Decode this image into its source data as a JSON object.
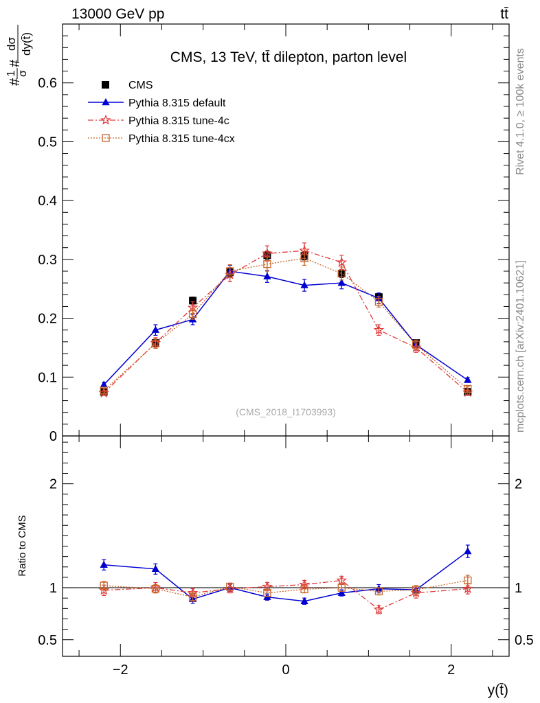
{
  "header": {
    "beam": "13000 GeV pp",
    "process": "tt̄"
  },
  "side_labels": {
    "rivet": "Rivet 4.1.0, ≥ 100k events",
    "mcplots": "mcplots.cern.ch [arXiv:2401.10621]"
  },
  "colors": {
    "cms": "#000000",
    "default": "#0000d0",
    "tune4c": "#e03a3a",
    "tune4cx": "#c86428"
  },
  "chart_data": [
    {
      "type": "line",
      "title": "CMS, 13 TeV, tt̄ dilepton, parton level",
      "watermark": "(CMS_2018_I1703993)",
      "xlabel": "y(t̄)",
      "ylabel": "#1/σ# dσ/dy(t̄)",
      "ylabel_parts": {
        "prefix": "#",
        "num": "1",
        "den": "σ",
        "mid": "#",
        "dnum": "dσ",
        "dden": "dy(t̄)"
      },
      "xlim": [
        -2.7,
        2.7
      ],
      "ylim": [
        0,
        0.7
      ],
      "xticks": [
        -2,
        0,
        2
      ],
      "xtick_labels": [
        "−2",
        "0",
        "2"
      ],
      "yticks": [
        0,
        0.1,
        0.2,
        0.3,
        0.4,
        0.5,
        0.6
      ],
      "ytick_labels": [
        "0",
        "0.1",
        "0.2",
        "0.3",
        "0.4",
        "0.5",
        "0.6"
      ],
      "x": [
        -2.2,
        -1.575,
        -1.125,
        -0.675,
        -0.225,
        0.225,
        0.675,
        1.125,
        1.575,
        2.2
      ],
      "series": [
        {
          "name": "CMS",
          "key": "cms",
          "marker": "square-filled",
          "line": "none",
          "values": [
            0.075,
            0.158,
            0.23,
            0.278,
            0.307,
            0.306,
            0.276,
            0.236,
            0.158,
            0.075
          ],
          "errors": [
            0.003,
            0.005,
            0.006,
            0.007,
            0.007,
            0.007,
            0.007,
            0.006,
            0.005,
            0.003
          ]
        },
        {
          "name": "Pythia 8.315 default",
          "key": "default",
          "marker": "triangle-filled",
          "line": "solid",
          "values": [
            0.087,
            0.18,
            0.198,
            0.28,
            0.271,
            0.256,
            0.26,
            0.234,
            0.155,
            0.095
          ],
          "errors": [
            0.004,
            0.009,
            0.009,
            0.01,
            0.01,
            0.01,
            0.01,
            0.009,
            0.008,
            0.004
          ]
        },
        {
          "name": "Pythia 8.315 tune-4c",
          "key": "tune4c",
          "marker": "star-open",
          "line": "dashdot",
          "values": [
            0.073,
            0.158,
            0.218,
            0.274,
            0.31,
            0.315,
            0.295,
            0.18,
            0.15,
            0.074
          ],
          "errors": [
            0.004,
            0.009,
            0.01,
            0.012,
            0.013,
            0.013,
            0.012,
            0.009,
            0.008,
            0.004
          ]
        },
        {
          "name": "Pythia 8.315 tune-4cx",
          "key": "tune4cx",
          "marker": "square-open",
          "line": "dotted",
          "values": [
            0.077,
            0.157,
            0.207,
            0.28,
            0.292,
            0.302,
            0.276,
            0.228,
            0.155,
            0.08
          ],
          "errors": [
            0.004,
            0.008,
            0.009,
            0.011,
            0.012,
            0.012,
            0.011,
            0.009,
            0.008,
            0.004
          ]
        }
      ]
    },
    {
      "type": "line",
      "ylabel": "Ratio to CMS",
      "xlabel": "y(t̄)",
      "xlim": [
        -2.7,
        2.7
      ],
      "ylim": [
        0.34,
        2.46
      ],
      "ytick_labels_left": [
        "0.5",
        "1",
        "2"
      ],
      "ytick_labels_right": [
        "0.5",
        "1",
        "2"
      ],
      "yticks_major": [
        0.5,
        1,
        2
      ],
      "yticks_minor": [
        0.6,
        0.7,
        0.8,
        0.9,
        1.1,
        1.2,
        1.3,
        1.4,
        1.5,
        1.6,
        1.7,
        1.8,
        1.9,
        2.1,
        2.2,
        2.3,
        2.4
      ],
      "reference_line": 1,
      "x": [
        -2.2,
        -1.575,
        -1.125,
        -0.675,
        -0.225,
        0.225,
        0.675,
        1.125,
        1.575,
        2.2
      ],
      "series": [
        {
          "name": "Pythia 8.315 default",
          "key": "default",
          "marker": "triangle-filled",
          "line": "solid",
          "values": [
            1.22,
            1.18,
            0.89,
            1.0,
            0.91,
            0.87,
            0.95,
            0.99,
            0.98,
            1.35
          ],
          "errors": [
            0.05,
            0.05,
            0.04,
            0.035,
            0.03,
            0.03,
            0.03,
            0.04,
            0.04,
            0.06
          ]
        },
        {
          "name": "Pythia 8.315 tune-4c",
          "key": "tune4c",
          "marker": "star-open",
          "line": "dashdot",
          "values": [
            0.975,
            1.0,
            0.95,
            0.99,
            1.01,
            1.03,
            1.07,
            0.79,
            0.95,
            0.99
          ],
          "errors": [
            0.05,
            0.05,
            0.04,
            0.04,
            0.04,
            0.04,
            0.04,
            0.04,
            0.05,
            0.05
          ]
        },
        {
          "name": "Pythia 8.315 tune-4cx",
          "key": "tune4cx",
          "marker": "square-open",
          "line": "dotted",
          "values": [
            1.02,
            0.99,
            0.91,
            1.01,
            0.95,
            0.985,
            1.0,
            0.965,
            0.98,
            1.07
          ],
          "errors": [
            0.04,
            0.04,
            0.04,
            0.035,
            0.035,
            0.035,
            0.035,
            0.035,
            0.04,
            0.05
          ]
        }
      ]
    }
  ]
}
